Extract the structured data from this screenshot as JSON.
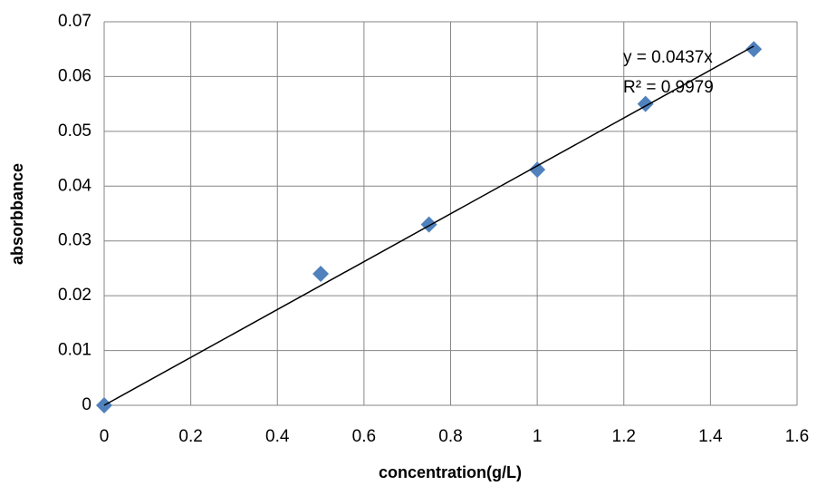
{
  "chart_data": {
    "type": "scatter",
    "x_label": "concentration(g/L)",
    "y_label": "absorbbance",
    "series": [
      {
        "color": "#4f81bd",
        "x": [
          0,
          0.5,
          0.75,
          1,
          1.25,
          1.5
        ],
        "values": [
          0,
          0.024,
          0.033,
          0.043,
          0.055,
          0.065
        ]
      }
    ],
    "trendline": {
      "slope": 0.0437,
      "color": "#000000",
      "equation_label": "y = 0.0437x",
      "r_squared_label": "R² = 0.9979"
    },
    "xlim": [
      0,
      1.6
    ],
    "xticks": [
      0,
      0.2,
      0.4,
      0.6,
      0.8,
      1,
      1.2,
      1.4,
      1.6
    ],
    "ylim": [
      0,
      0.07
    ],
    "yticks": [
      0,
      0.01,
      0.02,
      0.03,
      0.04,
      0.05,
      0.06,
      0.07
    ],
    "grid": true
  }
}
